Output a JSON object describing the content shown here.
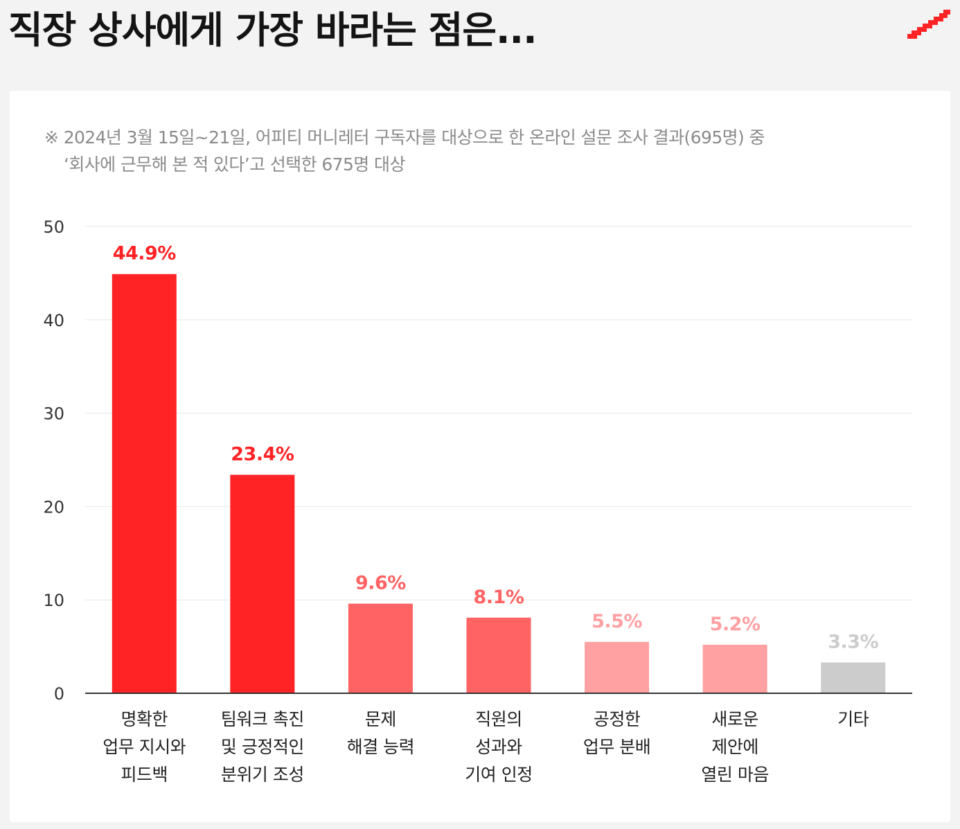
{
  "title": "직장 상사에게 가장 바라는 점은...",
  "note_lines": [
    "※ 2024년 3월 15일~21일, 어피티 머니레터 구독자를 대상으로 한 온라인 설문 조사 결과(695명) 중",
    "‘회사에 근무해 본 적 있다’고 선택한 675명 대상"
  ],
  "colors": {
    "red": "#ff2326",
    "mid": "#ff6363",
    "light": "#ffa0a2",
    "gray": "#cccccc"
  },
  "chart_data": {
    "type": "bar",
    "categories": [
      [
        "명확한",
        "업무 지시와",
        "피드백"
      ],
      [
        "팀워크 촉진",
        "및 긍정적인",
        "분위기 조성"
      ],
      [
        "문제",
        "해결 능력"
      ],
      [
        "직원의",
        "성과와",
        "기여 인정"
      ],
      [
        "공정한",
        "업무 분배"
      ],
      [
        "새로운",
        "제안에",
        "열린 마음"
      ],
      [
        "기타"
      ]
    ],
    "values": [
      44.9,
      23.4,
      9.6,
      8.1,
      5.5,
      5.2,
      3.3
    ],
    "data_labels": [
      "44.9%",
      "23.4%",
      "9.6%",
      "8.1%",
      "5.5%",
      "5.2%",
      "3.3%"
    ],
    "bar_color_keys": [
      "red",
      "red",
      "mid",
      "mid",
      "light",
      "light",
      "gray"
    ],
    "ylim": [
      0,
      50
    ],
    "yticks": [
      "0",
      "10",
      "20",
      "30",
      "40",
      "50"
    ],
    "grid": true,
    "legend": "none"
  }
}
